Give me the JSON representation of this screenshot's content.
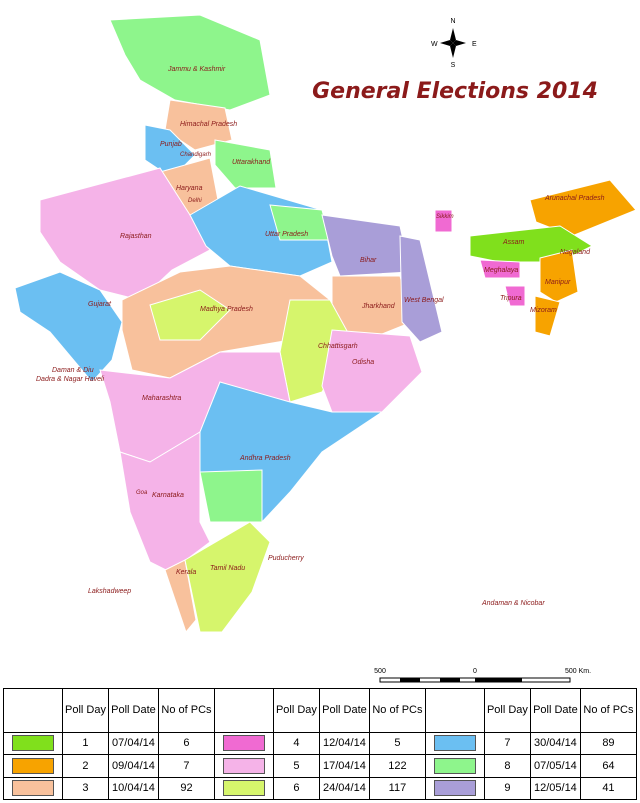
{
  "header": {
    "title": "General Elections 2014"
  },
  "compass": {
    "north": "N",
    "south": "S",
    "east": "E",
    "west": "W"
  },
  "scale": {
    "left": "500",
    "middle": "0",
    "right": "500 Km."
  },
  "states": [
    "Jammu & Kashmir",
    "Himachal Pradesh",
    "Punjab",
    "Chandigarh",
    "Uttarakhand",
    "Haryana",
    "Delhi",
    "Rajasthan",
    "Uttar Pradesh",
    "Sikkim",
    "Arunachal Pradesh",
    "Assam",
    "Nagaland",
    "Meghalaya",
    "Manipur",
    "Tripura",
    "Mizoram",
    "Bihar",
    "Gujarat",
    "Madhya Pradesh",
    "Jharkhand",
    "West Bengal",
    "Chhattisgarh",
    "Odisha",
    "Daman & Diu",
    "Dadra & Nagar Haveli",
    "Maharashtra",
    "Goa",
    "Andhra Pradesh",
    "Karnataka",
    "Puducherry",
    "Kerala",
    "Tamil Nadu",
    "Lakshadweep",
    "Andaman & Nicobar"
  ],
  "table": {
    "headers": [
      "Poll Day",
      "Poll Date",
      "No of PCs"
    ],
    "groups": [
      [
        {
          "day": 1,
          "date": "07/04/14",
          "pcs": 6,
          "color": "#80e01c"
        },
        {
          "day": 2,
          "date": "09/04/14",
          "pcs": 7,
          "color": "#f7a300"
        },
        {
          "day": 3,
          "date": "10/04/14",
          "pcs": 92,
          "color": "#f8c19c"
        }
      ],
      [
        {
          "day": 4,
          "date": "12/04/14",
          "pcs": 5,
          "color": "#f06ad2"
        },
        {
          "day": 5,
          "date": "17/04/14",
          "pcs": 122,
          "color": "#f5b3e8"
        },
        {
          "day": 6,
          "date": "24/04/14",
          "pcs": 117,
          "color": "#d6f56c"
        }
      ],
      [
        {
          "day": 7,
          "date": "30/04/14",
          "pcs": 89,
          "color": "#6bbff2"
        },
        {
          "day": 8,
          "date": "07/05/14",
          "pcs": 64,
          "color": "#8ef58c"
        },
        {
          "day": 9,
          "date": "12/05/14",
          "pcs": 41,
          "color": "#a99ed8"
        }
      ]
    ]
  }
}
